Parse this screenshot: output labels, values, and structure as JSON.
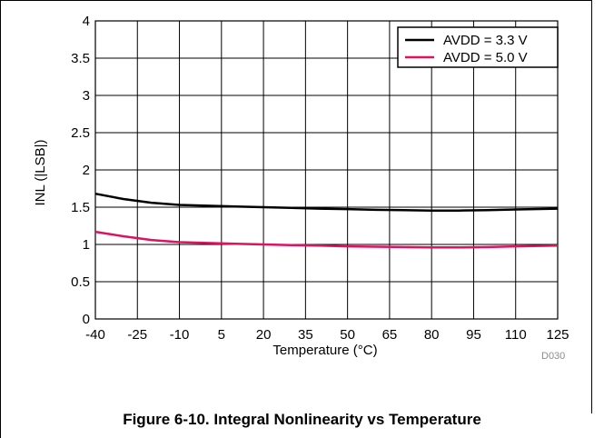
{
  "chart_data": {
    "type": "line",
    "title": "",
    "xlabel": "Temperature (°C)",
    "ylabel": "INL (|LSB|)",
    "xlim": [
      -40,
      125
    ],
    "ylim": [
      0,
      4
    ],
    "x_ticks": [
      -40,
      -25,
      -10,
      5,
      20,
      35,
      50,
      65,
      80,
      95,
      110,
      125
    ],
    "x_tick_labels": [
      "-40",
      "-25",
      "-10",
      "5",
      "20",
      "35",
      "50",
      "65",
      "80",
      "95",
      "110",
      "125"
    ],
    "y_ticks": [
      0,
      0.5,
      1,
      1.5,
      2,
      2.5,
      3,
      3.5,
      4
    ],
    "y_tick_labels": [
      "0",
      "0.5",
      "1",
      "1.5",
      "2",
      "2.5",
      "3",
      "3.5",
      "4"
    ],
    "grid": true,
    "legend_position": "top-right",
    "series": [
      {
        "name": "AVDD = 3.3 V",
        "color": "#000000",
        "x": [
          -40,
          -30,
          -20,
          -10,
          0,
          10,
          20,
          30,
          40,
          50,
          60,
          70,
          80,
          90,
          100,
          110,
          125
        ],
        "y": [
          1.68,
          1.61,
          1.56,
          1.53,
          1.52,
          1.51,
          1.5,
          1.49,
          1.48,
          1.475,
          1.465,
          1.46,
          1.455,
          1.455,
          1.46,
          1.47,
          1.48
        ]
      },
      {
        "name": "AVDD = 5.0 V",
        "color": "#e0115f",
        "x": [
          -40,
          -30,
          -20,
          -10,
          0,
          10,
          20,
          30,
          40,
          50,
          60,
          70,
          80,
          90,
          100,
          110,
          125
        ],
        "y": [
          1.17,
          1.11,
          1.06,
          1.03,
          1.02,
          1.01,
          1.0,
          0.99,
          0.985,
          0.975,
          0.97,
          0.965,
          0.96,
          0.96,
          0.965,
          0.975,
          0.985
        ]
      }
    ]
  },
  "figure": {
    "caption": "Figure 6-10. Integral Nonlinearity vs Temperature",
    "code": "D030"
  }
}
